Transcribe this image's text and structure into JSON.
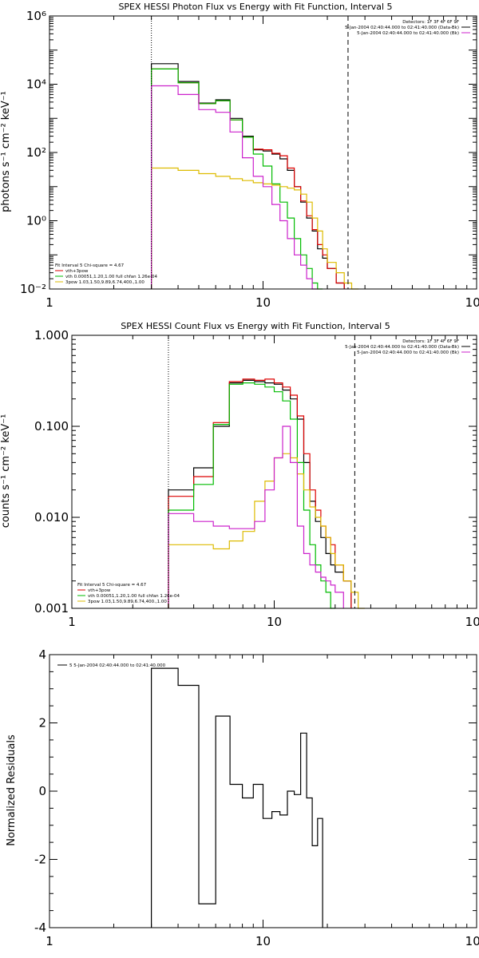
{
  "chart_data": [
    {
      "type": "line",
      "title": "SPEX HESSI Photon Flux vs Energy with Fit Function, Interval 5",
      "ylabel": "photons s⁻¹ cm⁻² keV⁻¹",
      "xlabel": "",
      "xscale": "log",
      "yscale": "log",
      "xlim": [
        1,
        100
      ],
      "ylim": [
        0.01,
        1000000
      ],
      "x_tick_labels": [
        "1",
        "10",
        "100"
      ],
      "y_tick_labels": [
        "10⁻²",
        "10⁰",
        "10²",
        "10⁴",
        "10⁶"
      ],
      "header_lines": [
        "Detectors: 1F 3F 4F 6F 9F",
        "5-Jan-2004 02:40:44.000 to 02:41:40.000 (Data-Bk)",
        "5-Jan-2004 02:40:44.000 to 02:41:40.000 (Bk)"
      ],
      "header_colors": [
        "#000000",
        "#000000",
        "#cc22cc"
      ],
      "fit_lines": [
        "Fit Interval 5   Chi-square = 4.67",
        "vth+3pow",
        "vth 0.00051,1.20,1.00  full chfan 1.26e-04",
        "3pow 1.03,1.50,9.89,6.74,400.,1.00"
      ],
      "fit_colors": [
        "#000000",
        "#dd0000",
        "#00bb00",
        "#ddbb00"
      ],
      "vlines": [
        {
          "x": 3,
          "style": "dotted"
        },
        {
          "x": 25,
          "style": "dashed"
        }
      ],
      "edges": [
        3,
        4,
        5,
        6,
        7,
        8,
        9,
        10,
        11,
        12,
        13,
        14,
        15,
        16,
        17,
        18,
        19,
        20,
        22,
        24,
        26,
        28
      ],
      "series": [
        {
          "name": "Data-Bk",
          "color": "#000000",
          "values": [
            40000,
            12000,
            2800,
            3500,
            1000,
            300,
            120,
            110,
            90,
            65,
            30,
            10,
            3.5,
            1.2,
            0.5,
            0.15,
            0.08,
            0.04,
            0.015,
            null,
            null
          ]
        },
        {
          "name": "vth+3pow",
          "color": "#dd0000",
          "values": [
            28000,
            11000,
            2700,
            3300,
            900,
            280,
            125,
            120,
            95,
            80,
            35,
            10,
            3.8,
            1.4,
            0.55,
            0.2,
            0.1,
            0.04,
            0.015,
            null,
            null
          ]
        },
        {
          "name": "vth",
          "color": "#00bb00",
          "values": [
            28000,
            11000,
            2700,
            3300,
            900,
            280,
            90,
            40,
            12,
            3.5,
            1.2,
            0.3,
            0.1,
            0.04,
            0.015,
            0.01,
            null,
            null,
            null,
            null,
            null
          ]
        },
        {
          "name": "3pow",
          "color": "#ddbb00",
          "values": [
            35,
            30,
            24,
            20,
            17,
            15,
            13,
            12,
            11,
            10,
            9,
            8,
            6,
            3.5,
            1.2,
            0.5,
            0.15,
            0.06,
            0.03,
            0.015,
            0.01
          ]
        },
        {
          "name": "Bk",
          "color": "#cc22cc",
          "values": [
            9000,
            5000,
            1800,
            1500,
            400,
            70,
            20,
            10,
            3,
            1,
            0.3,
            0.1,
            0.05,
            0.02,
            0.01,
            null,
            null,
            null,
            null,
            null,
            null
          ]
        }
      ]
    },
    {
      "type": "line",
      "title": "SPEX HESSI Count Flux vs Energy with Fit Function, Interval 5",
      "ylabel": "counts s⁻¹ cm⁻² keV⁻¹",
      "xlabel": "",
      "xscale": "log",
      "yscale": "log",
      "xlim": [
        1,
        100
      ],
      "ylim": [
        0.001,
        1
      ],
      "x_tick_labels": [
        "1",
        "10",
        "100"
      ],
      "y_tick_labels": [
        "0.001",
        "0.010",
        "0.100",
        "1.000"
      ],
      "header_lines": [
        "Detectors: 1F 3F 4F 6F 9F",
        "5-Jan-2004 02:40:44.000 to 02:41:40.000 (Data-Bk)",
        "5-Jan-2004 02:40:44.000 to 02:41:40.000 (Bk)"
      ],
      "header_colors": [
        "#000000",
        "#000000",
        "#cc22cc"
      ],
      "fit_lines": [
        "Fit Interval 5   Chi-square = 4.67",
        "vth+3pow",
        "vth 0.00051,1.20,1.00  full chfan 1.26e-04",
        "3pow 1.03,1.50,9.89,6.74,400.,1.00"
      ],
      "fit_colors": [
        "#000000",
        "#dd0000",
        "#00bb00",
        "#ddbb00"
      ],
      "vlines": [
        {
          "x": 3,
          "style": "dotted"
        },
        {
          "x": 25,
          "style": "dashed"
        }
      ],
      "edges": [
        3,
        4,
        5,
        6,
        7,
        8,
        9,
        10,
        11,
        12,
        13,
        14,
        15,
        16,
        17,
        18,
        19,
        20,
        22,
        24,
        26,
        28
      ],
      "series": [
        {
          "name": "Data-Bk",
          "color": "#000000",
          "values": [
            0.02,
            0.035,
            0.1,
            0.3,
            0.32,
            0.31,
            0.3,
            0.29,
            0.25,
            0.2,
            0.12,
            0.04,
            0.015,
            0.009,
            0.006,
            0.004,
            0.003,
            0.0025,
            0.002,
            null,
            null
          ]
        },
        {
          "name": "vth+3pow",
          "color": "#dd0000",
          "values": [
            0.017,
            0.028,
            0.11,
            0.31,
            0.33,
            0.32,
            0.33,
            0.3,
            0.27,
            0.22,
            0.13,
            0.05,
            0.02,
            0.012,
            0.008,
            0.006,
            0.005,
            0.003,
            0.002,
            null,
            null
          ]
        },
        {
          "name": "vth",
          "color": "#00bb00",
          "values": [
            0.012,
            0.023,
            0.105,
            0.29,
            0.3,
            0.29,
            0.27,
            0.24,
            0.19,
            0.12,
            0.04,
            0.012,
            0.005,
            0.003,
            0.002,
            0.0015,
            0.001,
            null,
            null,
            null,
            null
          ]
        },
        {
          "name": "3pow",
          "color": "#ddbb00",
          "values": [
            0.005,
            0.005,
            0.0045,
            0.0055,
            0.007,
            0.015,
            0.025,
            0.045,
            0.05,
            0.045,
            0.03,
            0.02,
            0.013,
            0.01,
            0.008,
            0.006,
            0.004,
            0.003,
            0.002,
            0.0015,
            0.001
          ]
        },
        {
          "name": "Bk",
          "color": "#cc22cc",
          "values": [
            0.011,
            0.009,
            0.008,
            0.0075,
            0.0075,
            0.009,
            0.02,
            0.045,
            0.1,
            0.04,
            0.008,
            0.004,
            0.003,
            0.0025,
            0.0022,
            0.002,
            0.0018,
            0.0015,
            null,
            null,
            null
          ]
        }
      ]
    },
    {
      "type": "line",
      "title": "",
      "ylabel": "Normalized Residuals",
      "xlabel": "",
      "xscale": "log",
      "yscale": "linear",
      "xlim": [
        1,
        100
      ],
      "ylim": [
        -4,
        4
      ],
      "x_tick_labels": [
        "1",
        "10",
        "100"
      ],
      "y_tick_labels": [
        "-4",
        "-2",
        "0",
        "2",
        "4"
      ],
      "legend_text": "5  5-Jan-2004 02:40:44.000 to 02:41:40.000",
      "edges": [
        3,
        4,
        5,
        6,
        7,
        8,
        9,
        10,
        11,
        12,
        13,
        14,
        15,
        16,
        17,
        18,
        19,
        20,
        22,
        24,
        26,
        28
      ],
      "series": [
        {
          "name": "",
          "color": "#000000",
          "values": [
            3.6,
            3.1,
            -3.3,
            2.2,
            0.2,
            -0.2,
            0.2,
            -0.8,
            -0.6,
            -0.7,
            0.0,
            -0.1,
            1.7,
            -0.2,
            -1.6,
            -0.8,
            null,
            null,
            null,
            null,
            null
          ]
        }
      ]
    }
  ]
}
